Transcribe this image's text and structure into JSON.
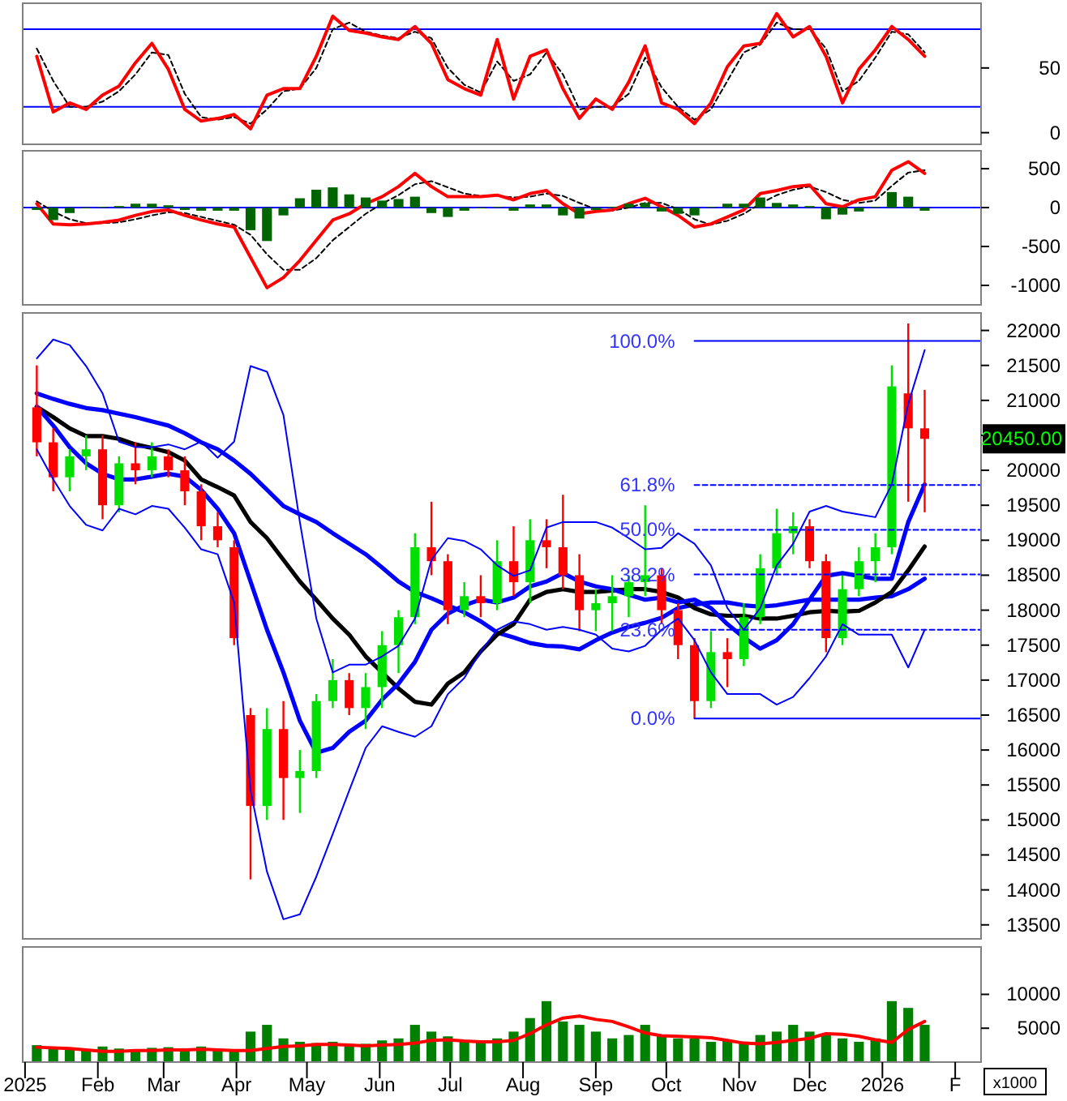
{
  "chart_data": [
    {
      "type": "line",
      "xlim": [
        "2024-12-31",
        "2026-02-12"
      ],
      "ylim": [
        -9,
        100
      ],
      "yticks": [
        0,
        50
      ],
      "tick_labels": "y",
      "ref_lines": [
        {
          "axis": "y",
          "value": 20,
          "color": "#0000ff"
        },
        {
          "axis": "y",
          "value": 80,
          "color": "#0000ff"
        }
      ],
      "x": [
        "2025-01-06",
        "2025-01-13",
        "2025-01-20",
        "2025-01-27",
        "2025-02-03",
        "2025-02-10",
        "2025-02-17",
        "2025-02-24",
        "2025-03-03",
        "2025-03-10",
        "2025-03-17",
        "2025-03-24",
        "2025-03-31",
        "2025-04-07",
        "2025-04-14",
        "2025-04-21",
        "2025-04-28",
        "2025-05-05",
        "2025-05-12",
        "2025-05-19",
        "2025-05-26",
        "2025-06-02",
        "2025-06-09",
        "2025-06-16",
        "2025-06-23",
        "2025-06-30",
        "2025-07-07",
        "2025-07-14",
        "2025-07-21",
        "2025-07-28",
        "2025-08-04",
        "2025-08-11",
        "2025-08-18",
        "2025-08-25",
        "2025-09-01",
        "2025-09-08",
        "2025-09-15",
        "2025-09-22",
        "2025-09-29",
        "2025-10-06",
        "2025-10-13",
        "2025-10-20",
        "2025-10-27",
        "2025-11-03",
        "2025-11-10",
        "2025-11-17",
        "2025-11-24",
        "2025-12-01",
        "2025-12-08",
        "2025-12-15",
        "2025-12-22",
        "2025-12-29",
        "2026-01-05",
        "2026-01-12",
        "2026-01-19"
      ],
      "series": [
        {
          "color": "#000000",
          "line_style": "dashed",
          "values": [
            65,
            40,
            20,
            20,
            24,
            32,
            45,
            62,
            60,
            30,
            12,
            10,
            12,
            7,
            18,
            32,
            34,
            50,
            80,
            85,
            78,
            75,
            73,
            78,
            73,
            50,
            37,
            31,
            55,
            40,
            45,
            62,
            45,
            18,
            20,
            20,
            30,
            58,
            35,
            20,
            10,
            18,
            40,
            62,
            68,
            85,
            80,
            80,
            65,
            32,
            40,
            58,
            78,
            76,
            62
          ]
        },
        {
          "color": "#ff0000",
          "values": [
            59,
            16,
            23,
            18,
            29,
            36,
            54,
            69,
            49,
            18,
            9,
            11,
            14,
            3,
            29,
            34,
            34,
            59,
            90,
            79,
            77,
            74,
            72,
            82,
            69,
            41,
            34,
            29,
            72,
            26,
            59,
            64,
            34,
            11,
            26,
            18,
            39,
            67,
            23,
            18,
            7,
            23,
            51,
            67,
            69,
            92,
            74,
            82,
            59,
            23,
            49,
            64,
            82,
            72,
            59
          ]
        }
      ]
    },
    {
      "type": "line",
      "xlim": [
        "2024-12-31",
        "2026-02-12"
      ],
      "ylim": [
        -1250,
        730
      ],
      "yticks": [
        -1000,
        -500,
        0,
        500
      ],
      "tick_labels": "y",
      "ref_lines": [
        {
          "axis": "y",
          "value": 0,
          "color": "#0000ff"
        }
      ],
      "x": [
        "2025-01-06",
        "2025-01-13",
        "2025-01-20",
        "2025-01-27",
        "2025-02-03",
        "2025-02-10",
        "2025-02-17",
        "2025-02-24",
        "2025-03-03",
        "2025-03-10",
        "2025-03-17",
        "2025-03-24",
        "2025-03-31",
        "2025-04-07",
        "2025-04-14",
        "2025-04-21",
        "2025-04-28",
        "2025-05-05",
        "2025-05-12",
        "2025-05-19",
        "2025-05-26",
        "2025-06-02",
        "2025-06-09",
        "2025-06-16",
        "2025-06-23",
        "2025-06-30",
        "2025-07-07",
        "2025-07-14",
        "2025-07-21",
        "2025-07-28",
        "2025-08-04",
        "2025-08-11",
        "2025-08-18",
        "2025-08-25",
        "2025-09-01",
        "2025-09-08",
        "2025-09-15",
        "2025-09-22",
        "2025-09-29",
        "2025-10-06",
        "2025-10-13",
        "2025-10-20",
        "2025-10-27",
        "2025-11-03",
        "2025-11-10",
        "2025-11-17",
        "2025-11-24",
        "2025-12-01",
        "2025-12-08",
        "2025-12-15",
        "2025-12-22",
        "2025-12-29",
        "2026-01-05",
        "2026-01-12",
        "2026-01-19"
      ],
      "series": [
        {
          "color": "#000000",
          "line_style": "dashed",
          "values": [
            80,
            -50,
            -150,
            -200,
            -200,
            -190,
            -150,
            -100,
            -60,
            -70,
            -120,
            -170,
            -220,
            -350,
            -600,
            -800,
            -800,
            -650,
            -420,
            -250,
            -80,
            50,
            160,
            300,
            340,
            260,
            180,
            150,
            150,
            130,
            140,
            180,
            150,
            60,
            -20,
            -40,
            0,
            60,
            60,
            -20,
            -150,
            -220,
            -170,
            -80,
            50,
            160,
            230,
            270,
            200,
            100,
            60,
            90,
            280,
            450,
            480
          ]
        },
        {
          "color": "#ff0000",
          "values": [
            50,
            -210,
            -220,
            -210,
            -190,
            -160,
            -100,
            -50,
            -30,
            -100,
            -160,
            -210,
            -250,
            -640,
            -1030,
            -900,
            -680,
            -420,
            -160,
            -80,
            50,
            140,
            270,
            440,
            270,
            140,
            140,
            140,
            160,
            100,
            180,
            220,
            50,
            -80,
            -50,
            -30,
            50,
            120,
            10,
            -100,
            -250,
            -210,
            -120,
            -30,
            180,
            220,
            270,
            290,
            50,
            10,
            100,
            140,
            480,
            590,
            440
          ]
        },
        {
          "type": "bar",
          "color": "#006400",
          "values": [
            -30,
            -160,
            -70,
            -10,
            10,
            20,
            50,
            50,
            30,
            -30,
            -40,
            -40,
            -40,
            -290,
            -430,
            -100,
            120,
            230,
            260,
            170,
            130,
            90,
            110,
            140,
            -70,
            -120,
            -40,
            -10,
            10,
            -40,
            40,
            40,
            -100,
            -140,
            -30,
            10,
            50,
            60,
            -50,
            -80,
            -100,
            10,
            50,
            50,
            130,
            60,
            40,
            20,
            -150,
            -90,
            -50,
            10,
            200,
            140,
            -40
          ]
        }
      ]
    },
    {
      "type": "candlestick",
      "xlim": [
        "2024-12-31",
        "2026-02-12"
      ],
      "ylim": [
        13300,
        22250
      ],
      "yticks": [
        13500,
        14000,
        14500,
        15000,
        15500,
        16000,
        16500,
        17000,
        17500,
        18000,
        18500,
        19000,
        19500,
        20000,
        {
          "value": 20500,
          "label": null
        },
        21000,
        21500,
        22000
      ],
      "tick_labels": "y",
      "x": [
        "2025-01-06",
        "2025-01-13",
        "2025-01-20",
        "2025-01-27",
        "2025-02-03",
        "2025-02-10",
        "2025-02-17",
        "2025-02-24",
        "2025-03-03",
        "2025-03-10",
        "2025-03-17",
        "2025-03-24",
        "2025-03-31",
        "2025-04-07",
        "2025-04-14",
        "2025-04-21",
        "2025-04-28",
        "2025-05-05",
        "2025-05-12",
        "2025-05-19",
        "2025-05-26",
        "2025-06-02",
        "2025-06-09",
        "2025-06-16",
        "2025-06-23",
        "2025-06-30",
        "2025-07-07",
        "2025-07-14",
        "2025-07-21",
        "2025-07-28",
        "2025-08-04",
        "2025-08-11",
        "2025-08-18",
        "2025-08-25",
        "2025-09-01",
        "2025-09-08",
        "2025-09-15",
        "2025-09-22",
        "2025-09-29",
        "2025-10-06",
        "2025-10-13",
        "2025-10-20",
        "2025-10-27",
        "2025-11-03",
        "2025-11-10",
        "2025-11-17",
        "2025-11-24",
        "2025-12-01",
        "2025-12-08",
        "2025-12-15",
        "2025-12-22",
        "2025-12-29",
        "2026-01-05",
        "2026-01-12",
        "2026-01-19"
      ],
      "ohlc": [
        [
          20900,
          21500,
          20200,
          20400
        ],
        [
          20400,
          20600,
          19700,
          19900
        ],
        [
          19900,
          20300,
          19700,
          20200
        ],
        [
          20200,
          20500,
          20000,
          20300
        ],
        [
          20300,
          20500,
          19300,
          19500
        ],
        [
          19500,
          20200,
          19400,
          20100
        ],
        [
          20100,
          20400,
          19800,
          20000
        ],
        [
          20000,
          20400,
          19900,
          20200
        ],
        [
          20200,
          20300,
          19900,
          20000
        ],
        [
          20000,
          20200,
          19500,
          19700
        ],
        [
          19700,
          19800,
          19000,
          19200
        ],
        [
          19200,
          19400,
          18900,
          19000
        ],
        [
          18900,
          19000,
          17500,
          17600
        ],
        [
          16500,
          16600,
          14150,
          15200
        ],
        [
          15200,
          16600,
          15000,
          16300
        ],
        [
          16300,
          16700,
          15000,
          15600
        ],
        [
          15600,
          16000,
          15100,
          15700
        ],
        [
          15700,
          16800,
          15600,
          16700
        ],
        [
          16700,
          17300,
          16600,
          17000
        ],
        [
          17000,
          17100,
          16500,
          16600
        ],
        [
          16600,
          17100,
          16300,
          16900
        ],
        [
          16900,
          17700,
          16600,
          17500
        ],
        [
          17500,
          18000,
          17100,
          17900
        ],
        [
          17900,
          19100,
          17800,
          18900
        ],
        [
          18900,
          19550,
          18500,
          18700
        ],
        [
          18700,
          18800,
          17800,
          18000
        ],
        [
          18000,
          18400,
          17900,
          18200
        ],
        [
          18200,
          18500,
          17900,
          18100
        ],
        [
          18100,
          19000,
          18000,
          18700
        ],
        [
          18700,
          19200,
          18200,
          18400
        ],
        [
          18400,
          19300,
          18100,
          19000
        ],
        [
          19000,
          19300,
          18600,
          18900
        ],
        [
          18900,
          19650,
          18300,
          18500
        ],
        [
          18500,
          18800,
          17700,
          18000
        ],
        [
          18000,
          18300,
          17700,
          18100
        ],
        [
          18100,
          18500,
          17700,
          18200
        ],
        [
          18200,
          18500,
          17900,
          18400
        ],
        [
          18400,
          19500,
          18200,
          18500
        ],
        [
          18500,
          18600,
          17800,
          18000
        ],
        [
          18000,
          18100,
          17300,
          17500
        ],
        [
          17500,
          17600,
          16450,
          16700
        ],
        [
          16700,
          17700,
          16600,
          17400
        ],
        [
          17400,
          17600,
          16900,
          17300
        ],
        [
          17300,
          18100,
          17200,
          17900
        ],
        [
          17900,
          18800,
          17800,
          18600
        ],
        [
          18600,
          19450,
          18500,
          19100
        ],
        [
          19100,
          19400,
          18800,
          19200
        ],
        [
          19200,
          19300,
          18600,
          18700
        ],
        [
          18700,
          18800,
          17400,
          17600
        ],
        [
          17600,
          18500,
          17500,
          18300
        ],
        [
          18300,
          18900,
          18200,
          18700
        ],
        [
          18700,
          19100,
          18400,
          18900
        ],
        [
          18900,
          21500,
          18800,
          21200
        ],
        [
          21100,
          22100,
          19550,
          20600
        ],
        [
          20600,
          21150,
          19400,
          20450
        ]
      ],
      "colors": [
        "#ff0000",
        "#ff0000",
        "#00e000",
        "#00e000",
        "#ff0000",
        "#00e000",
        "#ff0000",
        "#00e000",
        "#ff0000",
        "#ff0000",
        "#ff0000",
        "#ff0000",
        "#ff0000",
        "#ff0000",
        "#00e000",
        "#ff0000",
        "#00e000",
        "#00e000",
        "#00e000",
        "#ff0000",
        "#00e000",
        "#00e000",
        "#00e000",
        "#00e000",
        "#ff0000",
        "#ff0000",
        "#00e000",
        "#ff0000",
        "#00e000",
        "#ff0000",
        "#00e000",
        "#ff0000",
        "#ff0000",
        "#ff0000",
        "#00e000",
        "#00e000",
        "#00e000",
        "#00e000",
        "#ff0000",
        "#ff0000",
        "#ff0000",
        "#00e000",
        "#ff0000",
        "#00e000",
        "#00e000",
        "#00e000",
        "#00e000",
        "#ff0000",
        "#ff0000",
        "#00e000",
        "#00e000",
        "#00e000",
        "#00e000",
        "#ff0000",
        "#ff0000"
      ],
      "series": [
        {
          "type": "line",
          "color": "#0000ff",
          "values": [
            21100,
            21020,
            20950,
            20890,
            20860,
            20810,
            20760,
            20700,
            20640,
            20530,
            20400,
            20300,
            20140,
            19950,
            19720,
            19490,
            19370,
            19260,
            19100,
            18950,
            18800,
            18610,
            18410,
            18260,
            18170,
            18070,
            17970,
            17840,
            17680,
            17610,
            17530,
            17490,
            17480,
            17440,
            17570,
            17680,
            17760,
            17820,
            17890,
            18030,
            18080,
            18110,
            18110,
            18070,
            18050,
            18070,
            18110,
            18150,
            18150,
            18150,
            18150,
            18180,
            18200,
            18300,
            18450
          ]
        },
        {
          "type": "line",
          "color": "#000000",
          "values": [
            20910,
            20760,
            20600,
            20490,
            20490,
            20450,
            20370,
            20320,
            20260,
            20140,
            19870,
            19760,
            19640,
            19260,
            19030,
            18720,
            18410,
            18150,
            17880,
            17650,
            17340,
            17110,
            16880,
            16690,
            16650,
            16950,
            17110,
            17410,
            17650,
            17800,
            18150,
            18260,
            18300,
            18260,
            18260,
            18280,
            18300,
            18300,
            18260,
            18180,
            18030,
            17940,
            17920,
            17920,
            17880,
            17880,
            17920,
            17970,
            17990,
            17980,
            17990,
            18110,
            18260,
            18570,
            18910
          ]
        },
        {
          "type": "line",
          "color": "#0000ff",
          "values": [
            20910,
            20640,
            20330,
            20100,
            19950,
            19870,
            19870,
            19910,
            19950,
            19910,
            19720,
            19450,
            19100,
            18410,
            17720,
            17110,
            16420,
            15960,
            16030,
            16260,
            16420,
            16720,
            16950,
            17260,
            17720,
            17950,
            18070,
            18150,
            18110,
            18180,
            18340,
            18410,
            18530,
            18410,
            18340,
            18300,
            18220,
            18150,
            18180,
            18110,
            18150,
            18030,
            17800,
            17610,
            17450,
            17570,
            17800,
            18150,
            18490,
            18530,
            18490,
            18450,
            18450,
            19260,
            19800
          ]
        },
        {
          "type": "line",
          "color": "#0000ff",
          "line_style": "solid",
          "values": [
            21600,
            21870,
            21790,
            21490,
            21100,
            20410,
            20330,
            20330,
            20370,
            20300,
            20410,
            20180,
            20410,
            21490,
            21410,
            20790,
            19260,
            17880,
            17110,
            17220,
            17220,
            17340,
            17490,
            17880,
            18720,
            19030,
            18990,
            18870,
            18640,
            18490,
            18570,
            19180,
            19260,
            19260,
            19260,
            19180,
            19030,
            18870,
            18890,
            19100,
            18950,
            18640,
            18030,
            17720,
            18030,
            18640,
            18950,
            19410,
            19490,
            19410,
            19370,
            19330,
            19800,
            20950,
            21720
          ]
        },
        {
          "type": "line",
          "color": "#0000ff",
          "line_style": "solid",
          "values": [
            20300,
            19870,
            19490,
            19220,
            19140,
            19450,
            19370,
            19490,
            19450,
            19180,
            18870,
            18800,
            18110,
            15420,
            14260,
            13580,
            13650,
            14190,
            14800,
            15420,
            16030,
            16340,
            16260,
            16190,
            16340,
            16800,
            17030,
            17410,
            17720,
            17840,
            17800,
            17720,
            17760,
            17720,
            17650,
            17450,
            17410,
            17490,
            17720,
            17880,
            17570,
            17110,
            16800,
            16800,
            16800,
            16650,
            16760,
            17030,
            17340,
            17800,
            17650,
            17650,
            17650,
            17180,
            17720
          ]
        },
        {
          "type": "line",
          "color": "#0000ff",
          "line_style": "solid",
          "x": [
            "2025-10-13",
            "2026-02-12"
          ],
          "values": [
            21850,
            21850
          ]
        },
        {
          "type": "line",
          "color": "#0000ff",
          "line_style": "dashed",
          "x": [
            "2025-10-13",
            "2026-02-12"
          ],
          "values": [
            19790,
            19790
          ]
        },
        {
          "type": "line",
          "color": "#0000ff",
          "line_style": "dashed",
          "x": [
            "2025-10-13",
            "2026-02-12"
          ],
          "values": [
            19150,
            19150
          ]
        },
        {
          "type": "line",
          "color": "#0000ff",
          "line_style": "dashed",
          "x": [
            "2025-10-13",
            "2026-02-12"
          ],
          "values": [
            18510,
            18510
          ]
        },
        {
          "type": "line",
          "color": "#0000ff",
          "line_style": "dashed",
          "x": [
            "2025-10-13",
            "2026-02-12"
          ],
          "values": [
            17720,
            17720
          ]
        },
        {
          "type": "line",
          "color": "#0000ff",
          "line_style": "solid",
          "x": [
            "2025-10-13",
            "2026-02-12"
          ],
          "values": [
            16450,
            16450
          ]
        }
      ],
      "annotations": [
        {
          "text": "100.0%",
          "x": "2025-10-13",
          "y": 21850
        },
        {
          "text": "61.8%",
          "x": "2025-10-13",
          "y": 19790
        },
        {
          "text": "50.0%",
          "x": "2025-10-13",
          "y": 19150
        },
        {
          "text": "38.2%",
          "x": "2025-10-13",
          "y": 18510
        },
        {
          "text": "23.6%",
          "x": "2025-10-13",
          "y": 17720
        },
        {
          "text": "0.0%",
          "x": "2025-10-13",
          "y": 16450
        },
        "20450.00"
      ]
    },
    {
      "type": "bar",
      "xlim": [
        "2024-12-31",
        "2026-02-12"
      ],
      "ylim": [
        0,
        17000
      ],
      "yticks": [
        5000,
        10000
      ],
      "ylabel": "x1000",
      "xticks": [
        {
          "value": "2025-01-01",
          "label": "2025"
        },
        {
          "value": "2025-02-01",
          "label": "Feb"
        },
        {
          "value": "2025-03-01",
          "label": "Mar"
        },
        {
          "value": "2025-04-01",
          "label": "Apr"
        },
        {
          "value": "2025-05-01",
          "label": "May"
        },
        {
          "value": "2025-06-01",
          "label": "Jun"
        },
        {
          "value": "2025-07-01",
          "label": "Jul"
        },
        {
          "value": "2025-08-01",
          "label": "Aug"
        },
        {
          "value": "2025-09-01",
          "label": "Sep"
        },
        {
          "value": "2025-10-01",
          "label": "Oct"
        },
        {
          "value": "2025-11-01",
          "label": "Nov"
        },
        {
          "value": "2025-12-01",
          "label": "Dec"
        },
        {
          "value": "2026-01-01",
          "label": "2026"
        },
        {
          "value": "2026-02-01",
          "label": "F"
        }
      ],
      "x": [
        "2025-01-06",
        "2025-01-13",
        "2025-01-20",
        "2025-01-27",
        "2025-02-03",
        "2025-02-10",
        "2025-02-17",
        "2025-02-24",
        "2025-03-03",
        "2025-03-10",
        "2025-03-17",
        "2025-03-24",
        "2025-03-31",
        "2025-04-07",
        "2025-04-14",
        "2025-04-21",
        "2025-04-28",
        "2025-05-05",
        "2025-05-12",
        "2025-05-19",
        "2025-05-26",
        "2025-06-02",
        "2025-06-09",
        "2025-06-16",
        "2025-06-23",
        "2025-06-30",
        "2025-07-07",
        "2025-07-14",
        "2025-07-21",
        "2025-07-28",
        "2025-08-04",
        "2025-08-11",
        "2025-08-18",
        "2025-08-25",
        "2025-09-01",
        "2025-09-08",
        "2025-09-15",
        "2025-09-22",
        "2025-09-29",
        "2025-10-06",
        "2025-10-13",
        "2025-10-20",
        "2025-10-27",
        "2025-11-03",
        "2025-11-10",
        "2025-11-17",
        "2025-11-24",
        "2025-12-01",
        "2025-12-08",
        "2025-12-15",
        "2025-12-22",
        "2025-12-29",
        "2026-01-05",
        "2026-01-12",
        "2026-01-19"
      ],
      "series": [
        {
          "type": "bar",
          "color": "#008000",
          "values": [
            2500,
            2200,
            2000,
            1800,
            2300,
            2000,
            1900,
            2100,
            2200,
            2000,
            2300,
            1900,
            1800,
            4500,
            5500,
            3500,
            3000,
            2800,
            3000,
            2600,
            2700,
            3200,
            3500,
            5500,
            4500,
            3800,
            3200,
            3000,
            3500,
            4500,
            6500,
            9000,
            6000,
            5500,
            4500,
            3500,
            4000,
            5500,
            4000,
            3500,
            3500,
            3000,
            3200,
            3000,
            4000,
            4500,
            5500,
            4500,
            4000,
            3500,
            3000,
            3500,
            9000,
            8000,
            5500
          ]
        },
        {
          "type": "line",
          "color": "#ff0000",
          "values": [
            2200,
            2100,
            2000,
            1800,
            1600,
            1600,
            1700,
            1700,
            1800,
            1800,
            1900,
            1800,
            1700,
            1700,
            2000,
            2300,
            2400,
            2600,
            2600,
            2500,
            2400,
            2500,
            2600,
            2800,
            3200,
            3300,
            3100,
            3000,
            3000,
            3200,
            4200,
            5500,
            6500,
            6800,
            6300,
            6000,
            5200,
            4300,
            3900,
            3800,
            3700,
            3600,
            3200,
            2800,
            2700,
            2900,
            3200,
            3500,
            4200,
            4100,
            3800,
            3300,
            2900,
            4800,
            6000
          ]
        }
      ]
    }
  ]
}
